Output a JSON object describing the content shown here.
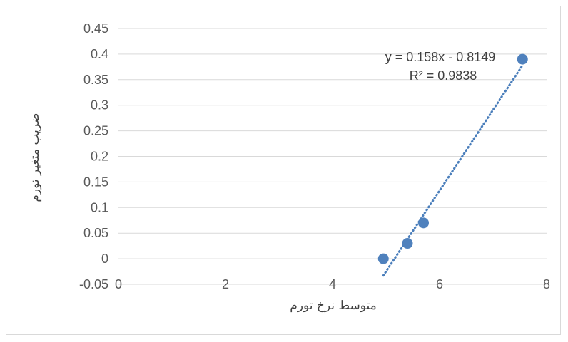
{
  "chart_data": {
    "type": "scatter",
    "title": "",
    "xlabel": "متوسط نرخ تورم",
    "ylabel": "ضریب متغیر تورم",
    "xlim": [
      0,
      8
    ],
    "ylim": [
      -0.05,
      0.45
    ],
    "x_ticks": [
      0,
      2,
      4,
      6,
      8
    ],
    "y_ticks": [
      -0.05,
      0,
      0.05,
      0.1,
      0.15,
      0.2,
      0.25,
      0.3,
      0.35,
      0.4,
      0.45
    ],
    "y_tick_labels": [
      "-0.05",
      "0",
      "0.05",
      "0.1",
      "0.15",
      "0.2",
      "0.25",
      "0.3",
      "0.35",
      "0.4",
      "0.45"
    ],
    "x_tick_labels": [
      "0",
      "2",
      "4",
      "6",
      "8"
    ],
    "grid": "horizontal",
    "legend": "none",
    "points": [
      {
        "x": 4.95,
        "y": 0.0
      },
      {
        "x": 5.4,
        "y": 0.03
      },
      {
        "x": 5.7,
        "y": 0.07
      },
      {
        "x": 7.55,
        "y": 0.39
      }
    ],
    "trendline": {
      "type": "linear",
      "slope": 0.158,
      "intercept": -0.8149,
      "x_range": [
        4.95,
        7.55
      ],
      "equation": "y = 0.158x - 0.8149",
      "r_squared": "R² = 0.9838"
    },
    "colors": {
      "marker": "#4f81bd",
      "trendline": "#4a7ebb",
      "grid": "#d9d9d9",
      "text": "#595959"
    }
  }
}
